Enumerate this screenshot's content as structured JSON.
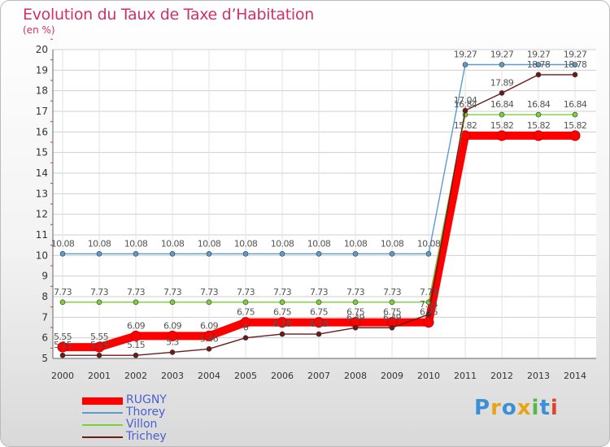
{
  "title": "Evolution du Taux de Taxe d’Habitation",
  "subtitle": "(en %)",
  "brand_text": "Proxiti",
  "chart_data": {
    "type": "line",
    "title": "Evolution du Taux de Taxe d’Habitation",
    "ylabel": "(en %)",
    "xlabel": "",
    "ylim": [
      5,
      20
    ],
    "grid": true,
    "legend_position": "bottom-left",
    "x": [
      "2000",
      "2001",
      "2002",
      "2003",
      "2004",
      "2005",
      "2006",
      "2007",
      "2008",
      "2009",
      "2010",
      "2011",
      "2012",
      "2013",
      "2014"
    ],
    "series": [
      {
        "name": "RUGNY",
        "color": "#ff0000",
        "values": [
          5.55,
          5.55,
          6.09,
          6.09,
          6.09,
          6.75,
          6.75,
          6.75,
          6.75,
          6.75,
          6.75,
          15.82,
          15.82,
          15.82,
          15.82
        ],
        "labels": [
          "5.55",
          "5.55",
          "6.09",
          "6.09",
          "6.09",
          "6.75",
          "6.75",
          "6.75",
          "6.75",
          "6.75",
          "6.75",
          "15.82",
          "15.82",
          "15.82",
          "15.82"
        ]
      },
      {
        "name": "Thorey",
        "color": "#5c9ccc",
        "values": [
          10.08,
          10.08,
          10.08,
          10.08,
          10.08,
          10.08,
          10.08,
          10.08,
          10.08,
          10.08,
          10.08,
          19.27,
          19.27,
          19.27,
          19.27
        ],
        "labels": [
          "10.08",
          "10.08",
          "10.08",
          "10.08",
          "10.08",
          "10.08",
          "10.08",
          "10.08",
          "10.08",
          "10.08",
          "10.08",
          "19.27",
          "19.27",
          "19.27",
          "19.27"
        ]
      },
      {
        "name": "Villon",
        "color": "#7bd137",
        "values": [
          7.73,
          7.73,
          7.73,
          7.73,
          7.73,
          7.73,
          7.73,
          7.73,
          7.73,
          7.73,
          7.73,
          16.84,
          16.84,
          16.84,
          16.84
        ],
        "labels": [
          "7.73",
          "7.73",
          "7.73",
          "7.73",
          "7.73",
          "7.73",
          "7.73",
          "7.73",
          "7.73",
          "7.73",
          "7.73",
          "16.84",
          "16.84",
          "16.84",
          "16.84"
        ]
      },
      {
        "name": "Trichey",
        "color": "#6b1a1a",
        "values": [
          5.15,
          5.15,
          5.15,
          5.3,
          5.46,
          6,
          6.18,
          6.18,
          6.49,
          6.49,
          7.14,
          17.04,
          17.89,
          18.78,
          18.78
        ],
        "labels": [
          "5.15",
          "5.15",
          "5.15",
          "5.3",
          "5.46",
          "6",
          "6.18",
          "6.18",
          "6.49",
          "6.49",
          "7.14",
          "17.04",
          "17.89",
          "18.78",
          "18.78"
        ]
      }
    ]
  }
}
